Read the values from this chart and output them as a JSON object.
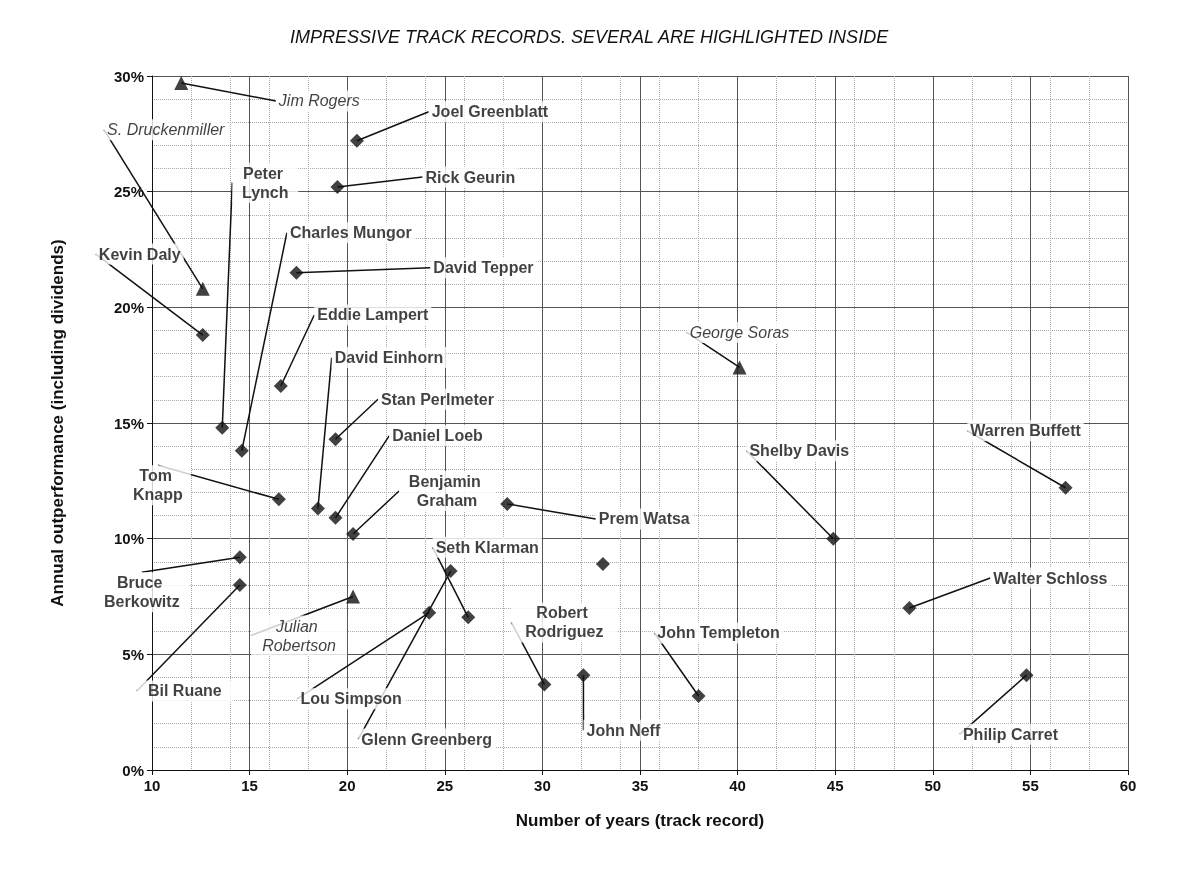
{
  "chart_data": {
    "type": "scatter",
    "xlabel": "Number of years (track record)",
    "ylabel": "Annual outperformance (including dividends)",
    "xlim": [
      10,
      60
    ],
    "xticks": [
      10,
      15,
      20,
      25,
      30,
      35,
      40,
      45,
      50,
      55,
      60
    ],
    "ylim": [
      0,
      30
    ],
    "yticks": [
      {
        "value": 0,
        "label": "0%"
      },
      {
        "value": 5,
        "label": "5%"
      },
      {
        "value": 10,
        "label": "10%"
      },
      {
        "value": 15,
        "label": "15%"
      },
      {
        "value": 20,
        "label": "20%"
      },
      {
        "value": 25,
        "label": "25%"
      },
      {
        "value": 30,
        "label": "30%"
      }
    ],
    "grid": true,
    "series": [
      {
        "color": "#111111",
        "marker": "diamond",
        "x": [
          20.5,
          19.5,
          17.4,
          12.6,
          16.6,
          13.6,
          14.6,
          19.4,
          16.5,
          18.5,
          19.4,
          20.3,
          28.2,
          26.2,
          25.3,
          14.5,
          14.5,
          24.2,
          33.1,
          30.1,
          32.1,
          38.0,
          44.9,
          56.8,
          48.8,
          54.8
        ],
        "values": [
          27.2,
          25.2,
          21.5,
          18.8,
          16.6,
          14.8,
          13.8,
          14.3,
          11.7,
          11.3,
          10.9,
          10.2,
          11.5,
          6.6,
          8.6,
          9.2,
          8.0,
          6.8,
          8.9,
          3.7,
          4.1,
          3.2,
          10.0,
          12.2,
          7.0,
          4.1
        ]
      },
      {
        "color": "#111111",
        "marker": "triangle",
        "x": [
          11.5,
          12.6,
          40.1,
          20.3
        ],
        "values": [
          29.7,
          20.8,
          17.4,
          7.5
        ]
      }
    ],
    "annotations": [
      "IMPRESSIVE TRACK RECORDS. SEVERAL ARE HIGHLIGHTED INSIDE",
      {
        "text": "Jim Rogers",
        "x": 11.5,
        "y": 29.7
      },
      {
        "text": "S. Druckenmiller",
        "x": 12.6,
        "y": 20.8
      },
      {
        "text": "Joel Greenblatt",
        "x": 20.5,
        "y": 27.2
      },
      {
        "text": "Rick Geurin",
        "x": 19.5,
        "y": 25.2
      },
      {
        "text": "Peter Lynch",
        "x": 13.6,
        "y": 14.8
      },
      {
        "text": "Charles Mungor",
        "x": 14.6,
        "y": 13.8
      },
      {
        "text": "Kevin Daly",
        "x": 12.6,
        "y": 18.8
      },
      {
        "text": "David Tepper",
        "x": 17.4,
        "y": 21.5
      },
      {
        "text": "Eddie Lampert",
        "x": 16.6,
        "y": 16.6
      },
      {
        "text": "David Einhorn",
        "x": 18.5,
        "y": 11.3
      },
      {
        "text": "Stan Perlmeter",
        "x": 19.4,
        "y": 14.3
      },
      {
        "text": "Daniel Loeb",
        "x": 19.4,
        "y": 10.9
      },
      {
        "text": "Tom Knapp",
        "x": 16.5,
        "y": 11.7
      },
      {
        "text": "Benjamin Graham",
        "x": 20.3,
        "y": 10.2
      },
      {
        "text": "Prem Watsa",
        "x": 28.2,
        "y": 11.5
      },
      {
        "text": "Seth Klarman",
        "x": 26.2,
        "y": 6.6
      },
      {
        "text": "Bruce Berkowitz",
        "x": 14.5,
        "y": 9.2
      },
      {
        "text": "Bil Ruane",
        "x": 14.5,
        "y": 8.0
      },
      {
        "text": "Julian Robertson",
        "x": 20.3,
        "y": 7.5
      },
      {
        "text": "Lou Simpson",
        "x": 24.2,
        "y": 6.8
      },
      {
        "text": "Glenn Greenberg",
        "x": 25.3,
        "y": 8.6
      },
      {
        "text": "Robert Rodriguez",
        "x": 30.1,
        "y": 3.7
      },
      {
        "text": "John Neff",
        "x": 32.1,
        "y": 4.1
      },
      {
        "text": "John Templeton",
        "x": 38.0,
        "y": 3.2
      },
      {
        "text": "George Soras",
        "x": 40.1,
        "y": 17.4
      },
      {
        "text": "Shelby Davis",
        "x": 44.9,
        "y": 10.0
      },
      {
        "text": "Warren Buffett",
        "x": 56.8,
        "y": 12.2
      },
      {
        "text": "Walter Schloss",
        "x": 48.8,
        "y": 7.0
      },
      {
        "text": "Philip Carret",
        "x": 54.8,
        "y": 4.1
      }
    ]
  }
}
